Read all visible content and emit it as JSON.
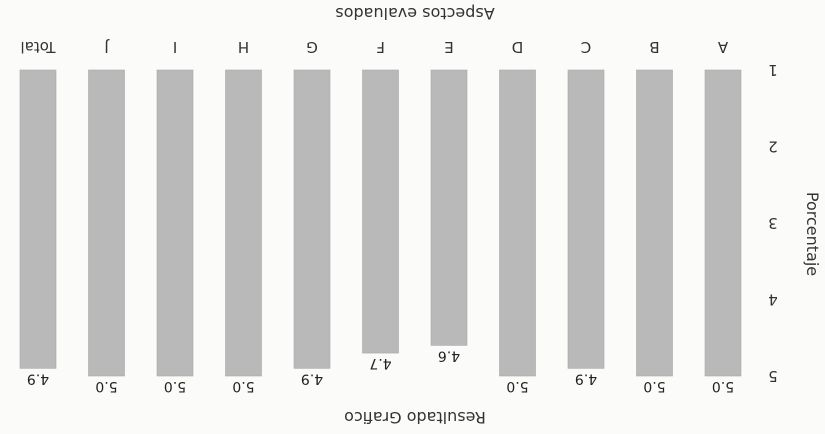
{
  "chart_data": {
    "type": "bar",
    "orientation": "vertical",
    "title": "Resultado Grafico",
    "xlabel": "Aspectos evaluados",
    "ylabel": "Porcentaje",
    "categories": [
      "A",
      "B",
      "C",
      "D",
      "E",
      "F",
      "G",
      "H",
      "I",
      "J",
      "Total"
    ],
    "values": [
      5.0,
      5.0,
      4.9,
      5.0,
      4.6,
      4.7,
      4.9,
      5.0,
      5.0,
      5.0,
      4.9
    ],
    "value_labels": [
      "5.0",
      "5.0",
      "4.9",
      "5.0",
      "4.6",
      "4.7",
      "4.9",
      "5.0",
      "5.0",
      "5.0",
      "4.9"
    ],
    "yticks": [
      "1",
      "2",
      "3",
      "4",
      "5"
    ],
    "ylim": [
      1,
      5
    ],
    "grid": false,
    "legend": "none",
    "bar_color": "#b9b9b9",
    "rotation": "upside-down"
  }
}
